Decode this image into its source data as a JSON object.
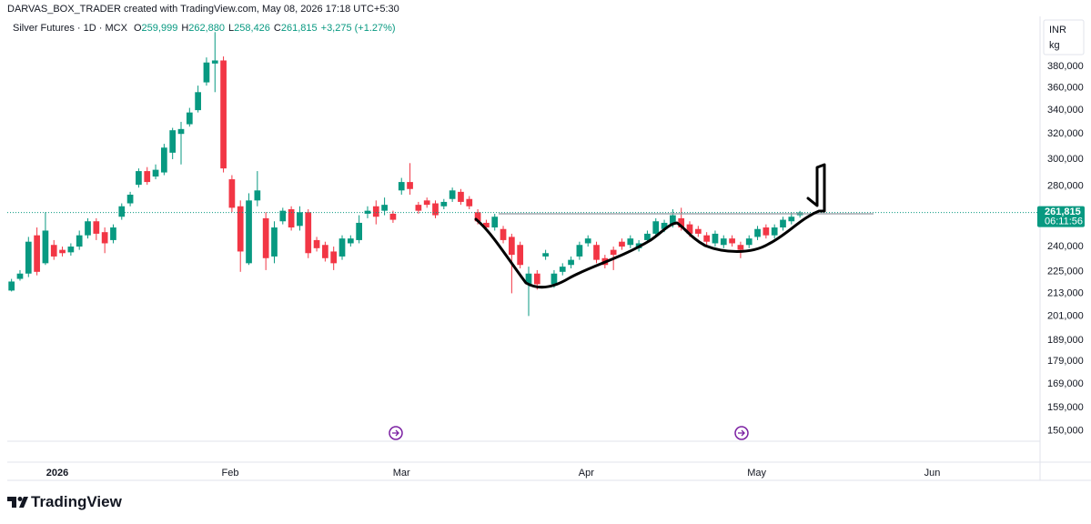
{
  "header": {
    "credit": "DARVAS_BOX_TRADER created with TradingView.com, May 08, 2026 17:18 UTC+5:30"
  },
  "chart_data": {
    "type": "candlestick",
    "title": "Silver Futures · 1D · MCX",
    "ohlc_legend": [
      {
        "label": "O",
        "value": "259,999"
      },
      {
        "label": "H",
        "value": "262,880"
      },
      {
        "label": "L",
        "value": "258,426"
      },
      {
        "label": "C",
        "value": "261,815"
      }
    ],
    "change": "+3,275 (+1.27%)",
    "currency": "INR",
    "unit": "kg",
    "open": [
      214500,
      221000,
      224000,
      247000,
      230000,
      241000,
      238000,
      236500,
      240000,
      247000,
      256000,
      249000,
      244000,
      259000,
      268000,
      281000,
      291000,
      287000,
      290000,
      305000,
      320000,
      328000,
      340000,
      365000,
      383000,
      386000,
      285000,
      266000,
      230000,
      270000,
      258000,
      234000,
      256000,
      264000,
      253000,
      262000,
      244000,
      241000,
      237000,
      234000,
      242000,
      244000,
      261000,
      266000,
      263000,
      261000,
      277000,
      283000,
      267000,
      270000,
      268000,
      266000,
      271000,
      276000,
      271000,
      262000,
      255000,
      252000,
      251000,
      246000,
      241000,
      218000,
      224000,
      234000,
      218000,
      225000,
      229000,
      234000,
      242000,
      241000,
      233000,
      238000,
      243000,
      241000,
      239000,
      244000,
      248000,
      251000,
      254000,
      258000,
      254000,
      251000,
      247000,
      242000,
      241000,
      245000,
      241000,
      241000,
      246000,
      252000,
      247000,
      252000,
      256000,
      259999
    ],
    "high": [
      221000,
      226000,
      246000,
      252000,
      262000,
      244000,
      240000,
      242000,
      250000,
      258000,
      258000,
      252000,
      254000,
      268000,
      276000,
      293000,
      294000,
      296000,
      312000,
      325000,
      330000,
      342000,
      362000,
      389000,
      415000,
      390000,
      288000,
      270000,
      275000,
      291000,
      262000,
      256000,
      265000,
      266000,
      266000,
      264000,
      246000,
      243000,
      240000,
      247000,
      247000,
      260000,
      266000,
      270000,
      272000,
      263000,
      286000,
      297000,
      269000,
      272000,
      270000,
      271000,
      279000,
      278000,
      273000,
      264000,
      257000,
      261000,
      253000,
      248000,
      243000,
      228000,
      226000,
      238000,
      226000,
      230000,
      234000,
      243000,
      247000,
      243000,
      235000,
      240000,
      245000,
      247000,
      244000,
      250000,
      258000,
      257000,
      264000,
      265000,
      256000,
      253000,
      249000,
      250000,
      247000,
      247000,
      243000,
      247000,
      253000,
      254000,
      254000,
      259000,
      262000,
      262880
    ],
    "low": [
      214000,
      220000,
      222000,
      223000,
      229000,
      232000,
      234000,
      234500,
      238000,
      245000,
      244000,
      236000,
      242000,
      257000,
      266000,
      279000,
      281000,
      285000,
      288000,
      300000,
      296000,
      326000,
      338000,
      362000,
      356000,
      290000,
      262000,
      225000,
      229000,
      266000,
      226000,
      230000,
      254000,
      250000,
      250000,
      233000,
      237000,
      231000,
      226000,
      232000,
      240000,
      242000,
      258000,
      254000,
      260000,
      255000,
      274000,
      274000,
      261000,
      265000,
      258000,
      264000,
      269000,
      267000,
      264000,
      254000,
      250000,
      250000,
      242000,
      213000,
      227000,
      201000,
      215000,
      232000,
      216000,
      223000,
      227000,
      232000,
      240000,
      230000,
      227000,
      226000,
      238000,
      239000,
      237000,
      242000,
      246000,
      249000,
      252000,
      250000,
      246000,
      246000,
      241000,
      240000,
      239000,
      240000,
      233000,
      239000,
      244000,
      245000,
      245000,
      250000,
      254000,
      258426
    ],
    "close": [
      219500,
      224000,
      243000,
      225000,
      250000,
      234000,
      236000,
      240000,
      247000,
      256000,
      248000,
      242000,
      252000,
      266000,
      274000,
      291000,
      283000,
      292000,
      309000,
      323000,
      324000,
      338000,
      356000,
      384000,
      386000,
      293000,
      265000,
      237000,
      270000,
      277000,
      233000,
      252000,
      263000,
      252000,
      262000,
      236000,
      239000,
      233000,
      230000,
      245000,
      245000,
      255000,
      263000,
      259000,
      267000,
      257000,
      283000,
      278000,
      263000,
      267000,
      260000,
      269000,
      277000,
      269000,
      266000,
      256000,
      252000,
      259000,
      244000,
      235000,
      229000,
      224000,
      218000,
      236000,
      224000,
      228000,
      232000,
      241000,
      245000,
      232000,
      229000,
      235000,
      240000,
      245000,
      242000,
      248000,
      256000,
      255000,
      260000,
      252000,
      248000,
      248000,
      243000,
      248000,
      245000,
      242000,
      238000,
      245000,
      251000,
      247000,
      252000,
      257000,
      259000,
      261815
    ],
    "up_color": "#089981",
    "down_color": "#f23645",
    "xlim": [
      -0.5,
      121
    ],
    "xticks": [
      {
        "value": 5.4,
        "label": "2026"
      },
      {
        "value": 25.8,
        "label": "Feb"
      },
      {
        "value": 46.0,
        "label": "Mar"
      },
      {
        "value": 67.8,
        "label": "Apr"
      },
      {
        "value": 87.9,
        "label": "May"
      },
      {
        "value": 108.6,
        "label": "Jun"
      }
    ],
    "ylim": [
      146000,
      430000
    ],
    "log_y": true,
    "grid": false,
    "yticks": [
      {
        "value": 150000,
        "label": "150,000"
      },
      {
        "value": 159000,
        "label": "159,000"
      },
      {
        "value": 169000,
        "label": "169,000"
      },
      {
        "value": 179000,
        "label": "179,000"
      },
      {
        "value": 189000,
        "label": "189,000"
      },
      {
        "value": 201000,
        "label": "201,000"
      },
      {
        "value": 213000,
        "label": "213,000"
      },
      {
        "value": 225000,
        "label": "225,000"
      },
      {
        "value": 240000,
        "label": "240,000"
      },
      {
        "value": 280000,
        "label": "280,000"
      },
      {
        "value": 300000,
        "label": "300,000"
      },
      {
        "value": 320000,
        "label": "320,000"
      },
      {
        "value": 340000,
        "label": "340,000"
      },
      {
        "value": 360000,
        "label": "360,000"
      },
      {
        "value": 380000,
        "label": "380,000"
      }
    ],
    "last_price_label": "261,815",
    "countdown": "06:11:56"
  },
  "footer": {
    "brand": "TradingView"
  }
}
